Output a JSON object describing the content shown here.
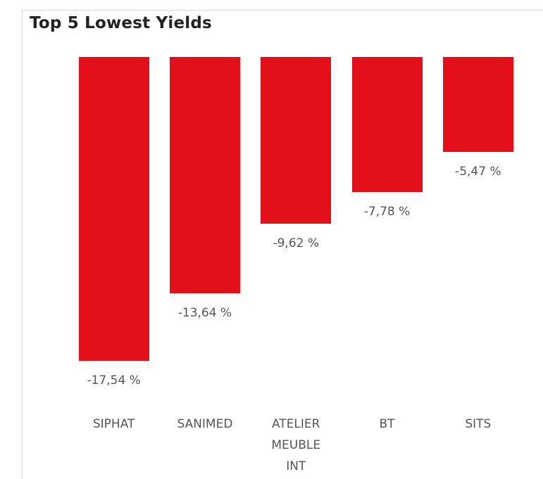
{
  "chart_data": {
    "type": "bar",
    "title": "Top 5 Lowest Yields",
    "categories": [
      "SIPHAT",
      "SANIMED",
      "ATELIER MEUBLE INT",
      "BT",
      "SITS"
    ],
    "values": [
      -17.54,
      -13.64,
      -9.62,
      -7.78,
      -5.47
    ],
    "value_labels": [
      "-17,54 %",
      "-13,64 %",
      "-9,62 %",
      "-7,78 %",
      "-5,47 %"
    ],
    "color": "#e3101b"
  }
}
